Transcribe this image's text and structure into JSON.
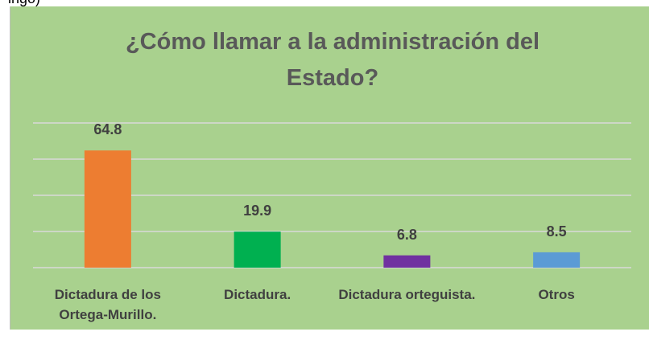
{
  "top_fragment": "ingo)",
  "chart_data": {
    "type": "bar",
    "title": "¿Cómo llamar a la administración del Estado?",
    "categories": [
      "Dictadura de los Ortega-Murillo.",
      "Dictadura.",
      "Dictadura orteguista.",
      "Otros"
    ],
    "values": [
      64.8,
      19.9,
      6.8,
      8.5
    ],
    "colors": [
      "#ed7d31",
      "#00b050",
      "#7030a0",
      "#5b9bd5"
    ],
    "ylim": [
      0,
      80
    ],
    "yticks": [
      0,
      20,
      40,
      60,
      80
    ],
    "grid": true
  }
}
